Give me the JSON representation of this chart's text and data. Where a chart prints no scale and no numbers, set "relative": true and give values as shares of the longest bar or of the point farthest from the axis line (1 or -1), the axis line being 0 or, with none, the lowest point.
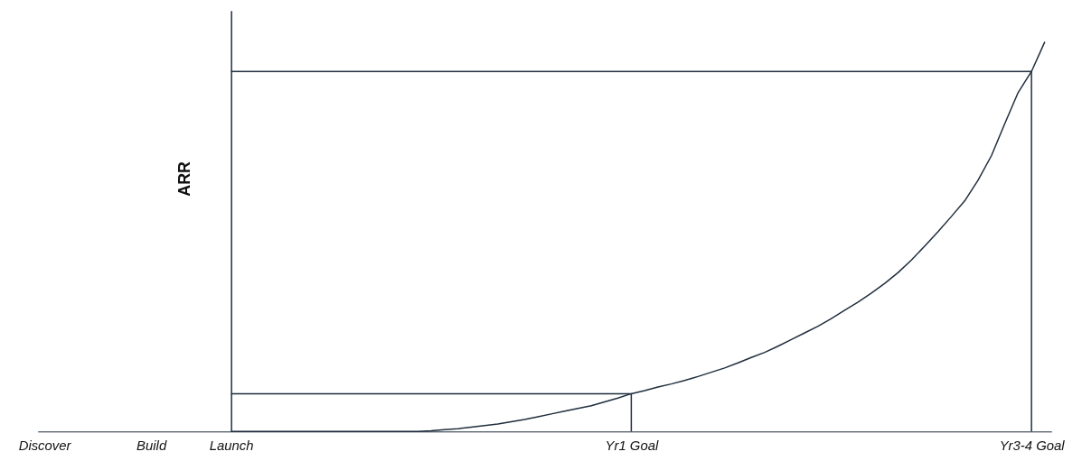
{
  "chart_data": {
    "type": "line",
    "relative": true,
    "ylabel": "ARR",
    "categories": [
      "Discover",
      null,
      null,
      null,
      null,
      null,
      null,
      null,
      "Build",
      null,
      null,
      null,
      null,
      null,
      "Launch",
      null,
      null,
      null,
      null,
      null,
      null,
      null,
      null,
      null,
      null,
      null,
      null,
      null,
      null,
      null,
      null,
      null,
      null,
      null,
      null,
      null,
      null,
      null,
      null,
      null,
      null,
      null,
      null,
      null,
      "Yr1 Goal",
      null,
      null,
      null,
      null,
      null,
      null,
      null,
      null,
      null,
      null,
      null,
      null,
      null,
      null,
      null,
      null,
      null,
      null,
      null,
      null,
      null,
      null,
      null,
      null,
      null,
      null,
      null,
      null,
      null,
      "Yr3-4 Goal",
      null
    ],
    "tick_labels": "x",
    "marker": "none",
    "line_style": "solid",
    "series": [
      {
        "color": "#1f2d3d",
        "values": [
          null,
          null,
          null,
          null,
          null,
          null,
          null,
          null,
          null,
          null,
          null,
          null,
          null,
          null,
          0,
          0,
          0,
          0,
          0,
          0,
          0,
          0,
          0,
          0,
          0,
          0,
          0,
          0,
          0,
          0.002,
          0.005,
          0.007,
          0.011,
          0.015,
          0.019,
          0.025,
          0.031,
          0.038,
          0.045,
          0.052,
          0.059,
          0.066,
          0.076,
          0.086,
          0.097,
          0.105,
          0.114,
          0.122,
          0.131,
          0.141,
          0.152,
          0.163,
          0.176,
          0.19,
          0.203,
          0.219,
          0.236,
          0.253,
          0.27,
          0.29,
          0.311,
          0.332,
          0.355,
          0.38,
          0.408,
          0.44,
          0.476,
          0.513,
          0.552,
          0.592,
          0.645,
          0.708,
          0.79,
          0.87,
          0.924,
          1.0
        ]
      },
      {
        "color": "#1f2d3d",
        "x": [
          "Launch",
          "Yr1 Goal",
          "Yr1 Goal"
        ],
        "values": [
          0.097,
          0.097,
          0
        ]
      },
      {
        "color": "#1f2d3d",
        "x": [
          "Launch",
          "Yr3-4 Goal",
          "Yr3-4 Goal"
        ],
        "values": [
          0.924,
          0.924,
          0
        ]
      }
    ]
  }
}
